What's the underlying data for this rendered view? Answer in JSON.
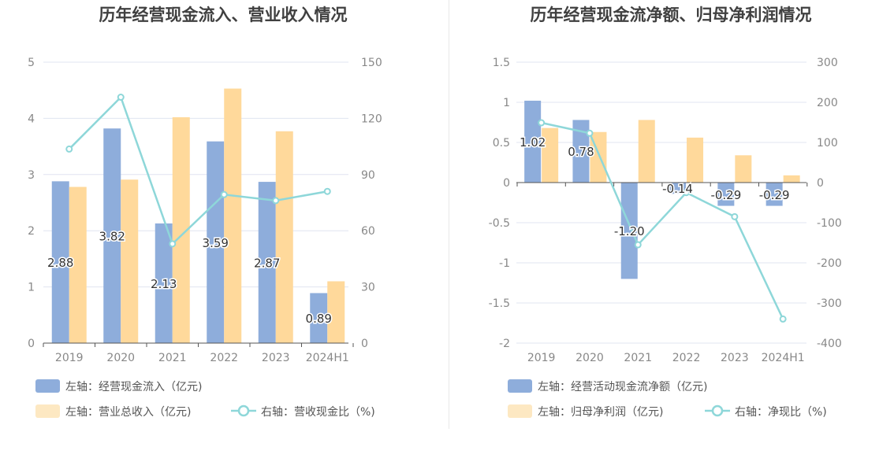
{
  "charts": [
    {
      "title": "历年经营现金流入、营业收入情况",
      "legend": [
        {
          "label": "左轴：经营现金流入（亿元)",
          "color": "#8eaddb",
          "kind": "bar"
        },
        {
          "label": "左轴：营业总收入（亿元)",
          "color": "#fde8c2",
          "kind": "bar"
        },
        {
          "label": "右轴：营收现金比（%)",
          "color": "#8ed7d9",
          "kind": "line"
        }
      ]
    },
    {
      "title": "历年经营现金流净额、归母净利润情况",
      "legend": [
        {
          "label": "左轴：经营活动现金流净额（亿元)",
          "color": "#8eaddb",
          "kind": "bar"
        },
        {
          "label": "左轴：归母净利润（亿元)",
          "color": "#fde8c2",
          "kind": "bar"
        },
        {
          "label": "右轴：净现比（%)",
          "color": "#8ed7d9",
          "kind": "line"
        }
      ]
    }
  ],
  "chart_data": [
    {
      "type": "bar",
      "title": "历年经营现金流入、营业收入情况",
      "categories": [
        "2019",
        "2020",
        "2021",
        "2022",
        "2023",
        "2024H1"
      ],
      "left_axis": {
        "range": [
          0,
          5
        ],
        "ticks": [
          "0",
          "1",
          "2",
          "3",
          "4",
          "5"
        ]
      },
      "right_axis": {
        "range": [
          0,
          150
        ],
        "ticks": [
          "0",
          "30",
          "60",
          "90",
          "120",
          "150"
        ]
      },
      "series": [
        {
          "name": "左轴：经营现金流入（亿元)",
          "axis": "left",
          "type": "bar",
          "color": "#8eaddb",
          "values": [
            2.88,
            3.82,
            2.13,
            3.59,
            2.87,
            0.89
          ],
          "labels": [
            "2.88",
            "3.82",
            "2.13",
            "3.59",
            "2.87",
            "0.89"
          ]
        },
        {
          "name": "左轴：营业总收入（亿元)",
          "axis": "left",
          "type": "bar",
          "color": "#ffd99b",
          "values": [
            2.78,
            2.91,
            4.02,
            4.53,
            3.77,
            1.1
          ]
        },
        {
          "name": "右轴：营收现金比（%)",
          "axis": "right",
          "type": "line",
          "color": "#8ed7d9",
          "values": [
            103.6,
            131.3,
            53.0,
            79.3,
            76.1,
            81.0
          ]
        }
      ],
      "grid": true,
      "legend_position": "bottom-left"
    },
    {
      "type": "bar",
      "title": "历年经营现金流净额、归母净利润情况",
      "categories": [
        "2019",
        "2020",
        "2021",
        "2022",
        "2023",
        "2024H1"
      ],
      "left_axis": {
        "range": [
          -2,
          1.5
        ],
        "ticks": [
          "-2",
          "-1.5",
          "-1",
          "-0.5",
          "0",
          "0.5",
          "1",
          "1.5"
        ]
      },
      "right_axis": {
        "range": [
          -400,
          300
        ],
        "ticks": [
          "-400",
          "-300",
          "-200",
          "-100",
          "0",
          "100",
          "200",
          "300"
        ]
      },
      "series": [
        {
          "name": "左轴：经营活动现金流净额（亿元)",
          "axis": "left",
          "type": "bar",
          "color": "#8eaddb",
          "values": [
            1.02,
            0.78,
            -1.2,
            -0.14,
            -0.29,
            -0.29
          ],
          "labels": [
            "1.02",
            "0.78",
            "-1.20",
            "-0.14",
            "-0.29",
            "-0.29"
          ]
        },
        {
          "name": "左轴：归母净利润（亿元)",
          "axis": "left",
          "type": "bar",
          "color": "#ffd99b",
          "values": [
            0.68,
            0.63,
            0.78,
            0.56,
            0.34,
            0.09
          ]
        },
        {
          "name": "右轴：净现比（%)",
          "axis": "right",
          "type": "line",
          "color": "#8ed7d9",
          "values": [
            149,
            123,
            -155,
            -25,
            -85,
            -340
          ]
        }
      ],
      "grid": true,
      "legend_position": "bottom-left"
    }
  ]
}
